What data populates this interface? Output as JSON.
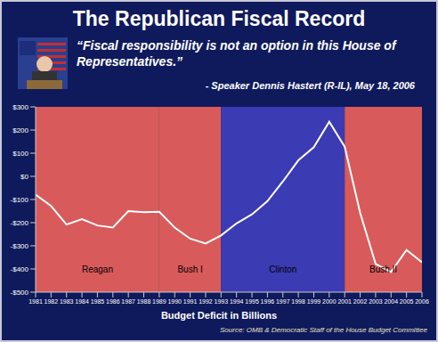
{
  "chart_data": {
    "type": "line",
    "title": "The Republican Fiscal Record",
    "subtitle": "“Fiscal responsibility is not an option in this House of Representatives.”",
    "annotations": [
      "- Speaker Dennis Hastert (R-IL), May 18, 2006",
      "Source: OMB & Democratic Staff of the House Budget Committee"
    ],
    "x_label": "Budget Deficit in Billions",
    "x": [
      1981,
      1982,
      1983,
      1984,
      1985,
      1986,
      1987,
      1988,
      1989,
      1990,
      1991,
      1992,
      1993,
      1994,
      1995,
      1996,
      1997,
      1998,
      1999,
      2000,
      2001,
      2002,
      2003,
      2004,
      2005,
      2006
    ],
    "values": [
      -79,
      -128,
      -208,
      -185,
      -212,
      -221,
      -150,
      -155,
      -153,
      -221,
      -269,
      -290,
      -255,
      -203,
      -164,
      -107,
      -22,
      69,
      126,
      236,
      128,
      -158,
      -378,
      -413,
      -318,
      -371
    ],
    "color": "#ffffff",
    "xlim": [
      1981,
      2006
    ],
    "xticks": [
      1981,
      1982,
      1983,
      1984,
      1985,
      1986,
      1987,
      1988,
      1989,
      1990,
      1991,
      1992,
      1993,
      1994,
      1995,
      1996,
      1997,
      1998,
      1999,
      2000,
      2001,
      2002,
      2003,
      2004,
      2005,
      2006
    ],
    "ylim": [
      -500,
      300
    ],
    "yticks": [
      {
        "value": -500,
        "label": "-$500"
      },
      {
        "value": -400,
        "label": "-$400"
      },
      {
        "value": -300,
        "label": "-$300"
      },
      {
        "value": -200,
        "label": "-$200"
      },
      {
        "value": -100,
        "label": "-$100"
      },
      {
        "value": 0,
        "label": "$0"
      },
      {
        "value": 100,
        "label": "$100"
      },
      {
        "value": 200,
        "label": "$200"
      },
      {
        "value": 300,
        "label": "$300"
      }
    ],
    "grid": false,
    "periods": [
      {
        "label": "Reagan",
        "start": 1981,
        "end": 1989,
        "color": "#d95a5a"
      },
      {
        "label": "Bush I",
        "start": 1989,
        "end": 1993,
        "color": "#d95a5a"
      },
      {
        "label": "Clinton",
        "start": 1993,
        "end": 2001,
        "color": "#3b3bb3"
      },
      {
        "label": "Bush II",
        "start": 2001,
        "end": 2006,
        "color": "#d95a5a"
      }
    ]
  }
}
